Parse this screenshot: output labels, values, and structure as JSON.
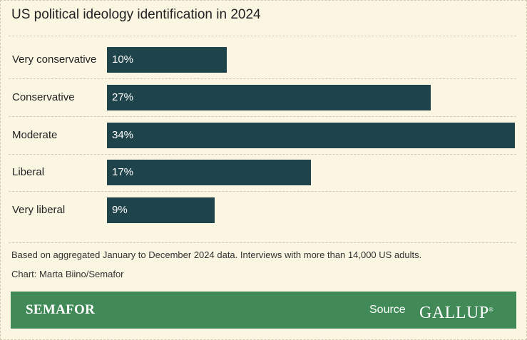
{
  "title": "US political ideology identification in 2024",
  "chart_data": {
    "type": "bar",
    "orientation": "horizontal",
    "title": "US political ideology identification in 2024",
    "categories": [
      "Very conservative",
      "Conservative",
      "Moderate",
      "Liberal",
      "Very liberal"
    ],
    "values": [
      10,
      27,
      34,
      17,
      9
    ],
    "value_labels": [
      "10%",
      "27%",
      "34%",
      "17%",
      "9%"
    ],
    "xlim": [
      0,
      34
    ],
    "grid": false,
    "bar_color": "#1f434a"
  },
  "notes": {
    "source_text": "Based on aggregated January to December 2024 data. Interviews with more than 14,000 US adults.",
    "credit": "Chart: Marta Biino/Semafor"
  },
  "footer": {
    "brand": "SEMAFOR",
    "source_label": "Source",
    "source_logo": "GALLUP",
    "background": "#418a57"
  }
}
